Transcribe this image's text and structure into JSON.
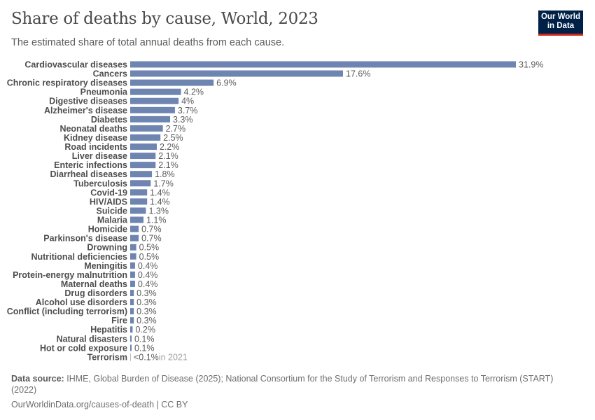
{
  "title": "Share of deaths by cause, World, 2023",
  "subtitle": "The estimated share of total annual deaths from each cause.",
  "logo": {
    "line1": "Our World",
    "line2": "in Data",
    "bg": "#002147",
    "accent": "#ce261e"
  },
  "footer": {
    "source_label": "Data source:",
    "source_text": "IHME, Global Burden of Disease (2025); National Consortium for the Study of Terrorism and Responses to Terrorism (START) (2022)",
    "url": "OurWorldinData.org/causes-of-death | CC BY"
  },
  "chart_data": {
    "type": "bar",
    "orientation": "horizontal",
    "unit": "%",
    "bar_color": "#6d85b0",
    "categories": [
      "Cardiovascular diseases",
      "Cancers",
      "Chronic respiratory diseases",
      "Pneumonia",
      "Digestive diseases",
      "Alzheimer's disease",
      "Diabetes",
      "Neonatal deaths",
      "Kidney disease",
      "Road incidents",
      "Liver disease",
      "Enteric infections",
      "Diarrheal diseases",
      "Tuberculosis",
      "Covid-19",
      "HIV/AIDS",
      "Suicide",
      "Malaria",
      "Homicide",
      "Parkinson's disease",
      "Drowning",
      "Nutritional deficiencies",
      "Meningitis",
      "Protein-energy malnutrition",
      "Maternal deaths",
      "Drug disorders",
      "Alcohol use disorders",
      "Conflict (including terrorism)",
      "Fire",
      "Hepatitis",
      "Natural disasters",
      "Hot or cold exposure",
      "Terrorism"
    ],
    "values": [
      31.9,
      17.6,
      6.9,
      4.2,
      4,
      3.7,
      3.3,
      2.7,
      2.5,
      2.2,
      2.1,
      2.1,
      1.8,
      1.7,
      1.4,
      1.4,
      1.3,
      1.1,
      0.7,
      0.7,
      0.5,
      0.5,
      0.4,
      0.4,
      0.4,
      0.3,
      0.3,
      0.3,
      0.3,
      0.2,
      0.1,
      0.1,
      0.05
    ],
    "labels": [
      "31.9%",
      "17.6%",
      "6.9%",
      "4.2%",
      "4%",
      "3.7%",
      "3.3%",
      "2.7%",
      "2.5%",
      "2.2%",
      "2.1%",
      "2.1%",
      "1.8%",
      "1.7%",
      "1.4%",
      "1.4%",
      "1.3%",
      "1.1%",
      "0.7%",
      "0.7%",
      "0.5%",
      "0.5%",
      "0.4%",
      "0.4%",
      "0.4%",
      "0.3%",
      "0.3%",
      "0.3%",
      "0.3%",
      "0.2%",
      "0.1%",
      "0.1%",
      "<0.1%"
    ],
    "annotations": {
      "Terrorism": "in 2021"
    }
  }
}
